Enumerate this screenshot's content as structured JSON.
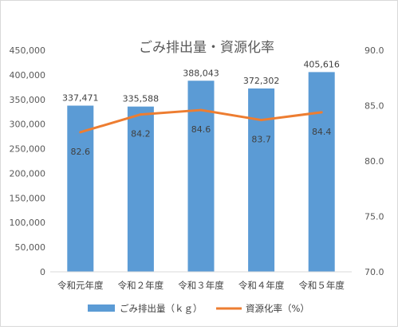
{
  "chart_data": {
    "type": "bar",
    "title": "ごみ排出量・資源化率",
    "categories": [
      "令和元年度",
      "令和２年度",
      "令和３年度",
      "令和４年度",
      "令和５年度"
    ],
    "series": [
      {
        "name": "ごみ排出量（ｋｇ）",
        "type": "bar",
        "axis": "left",
        "color": "#5b9bd5",
        "values": [
          337471,
          335588,
          388043,
          372302,
          405616
        ],
        "labels": [
          "337,471",
          "335,588",
          "388,043",
          "372,302",
          "405,616"
        ]
      },
      {
        "name": "資源化率（%）",
        "type": "line",
        "axis": "right",
        "color": "#ed7d31",
        "values": [
          82.6,
          84.2,
          84.6,
          83.7,
          84.4
        ],
        "labels": [
          "82.6",
          "84.2",
          "84.6",
          "83.7",
          "84.4"
        ]
      }
    ],
    "y_left": {
      "min": 0,
      "max": 450000,
      "ticks": [
        0,
        50000,
        100000,
        150000,
        200000,
        250000,
        300000,
        350000,
        400000,
        450000
      ],
      "tick_labels": [
        "0",
        "50,000",
        "100,000",
        "150,000",
        "200,000",
        "250,000",
        "300,000",
        "350,000",
        "400,000",
        "450,000"
      ]
    },
    "y_right": {
      "min": 70,
      "max": 90,
      "ticks": [
        70,
        75,
        80,
        85,
        90
      ],
      "tick_labels": [
        "70.0",
        "75.0",
        "80.0",
        "85.0",
        "90.0"
      ]
    },
    "grid": false,
    "legend_position": "bottom"
  }
}
